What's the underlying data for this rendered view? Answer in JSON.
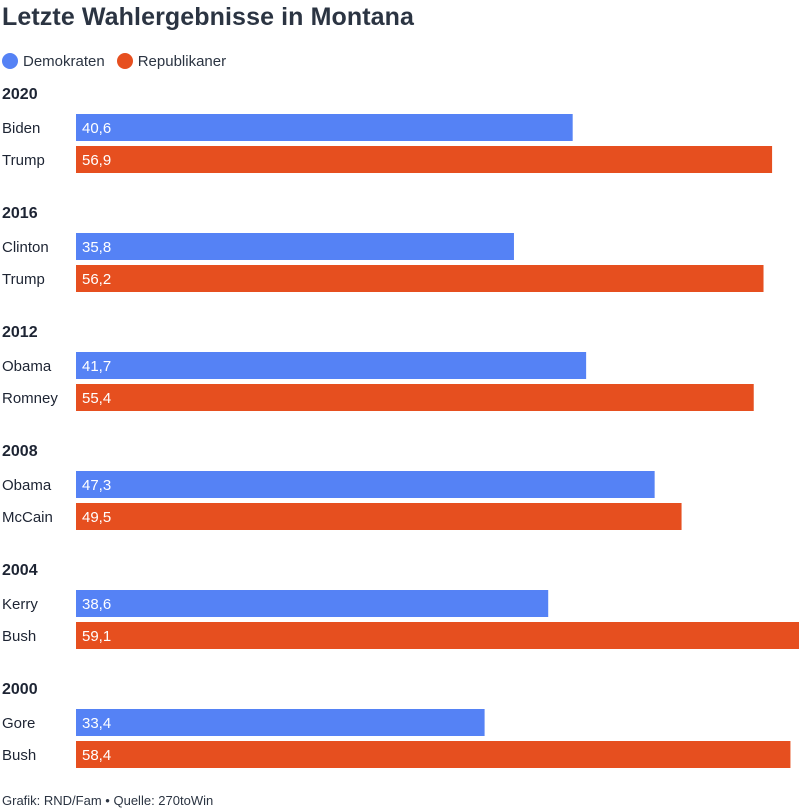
{
  "title": "Letzte Wahlergebnisse in Montana",
  "legend": [
    {
      "label": "Demokraten",
      "color": "#5582f5"
    },
    {
      "label": "Republikaner",
      "color": "#e64f1f"
    }
  ],
  "footer": {
    "credit": "Grafik: RND/Fam",
    "separator": "•",
    "source": "Quelle: 270toWin"
  },
  "chart_data": {
    "type": "bar",
    "orientation": "horizontal",
    "title": "Letzte Wahlergebnisse in Montana",
    "xlim": [
      0,
      59.1
    ],
    "grid": false,
    "legend_position": "top-left",
    "groups": [
      {
        "year": "2020",
        "bars": [
          {
            "candidate": "Biden",
            "party": "Demokraten",
            "value": 40.6,
            "label": "40,6"
          },
          {
            "candidate": "Trump",
            "party": "Republikaner",
            "value": 56.9,
            "label": "56,9"
          }
        ]
      },
      {
        "year": "2016",
        "bars": [
          {
            "candidate": "Clinton",
            "party": "Demokraten",
            "value": 35.8,
            "label": "35,8"
          },
          {
            "candidate": "Trump",
            "party": "Republikaner",
            "value": 56.2,
            "label": "56,2"
          }
        ]
      },
      {
        "year": "2012",
        "bars": [
          {
            "candidate": "Obama",
            "party": "Demokraten",
            "value": 41.7,
            "label": "41,7"
          },
          {
            "candidate": "Romney",
            "party": "Republikaner",
            "value": 55.4,
            "label": "55,4"
          }
        ]
      },
      {
        "year": "2008",
        "bars": [
          {
            "candidate": "Obama",
            "party": "Demokraten",
            "value": 47.3,
            "label": "47,3"
          },
          {
            "candidate": "McCain",
            "party": "Republikaner",
            "value": 49.5,
            "label": "49,5"
          }
        ]
      },
      {
        "year": "2004",
        "bars": [
          {
            "candidate": "Kerry",
            "party": "Demokraten",
            "value": 38.6,
            "label": "38,6"
          },
          {
            "candidate": "Bush",
            "party": "Republikaner",
            "value": 59.1,
            "label": "59,1"
          }
        ]
      },
      {
        "year": "2000",
        "bars": [
          {
            "candidate": "Gore",
            "party": "Demokraten",
            "value": 33.4,
            "label": "33,4"
          },
          {
            "candidate": "Bush",
            "party": "Republikaner",
            "value": 58.4,
            "label": "58,4"
          }
        ]
      }
    ]
  }
}
